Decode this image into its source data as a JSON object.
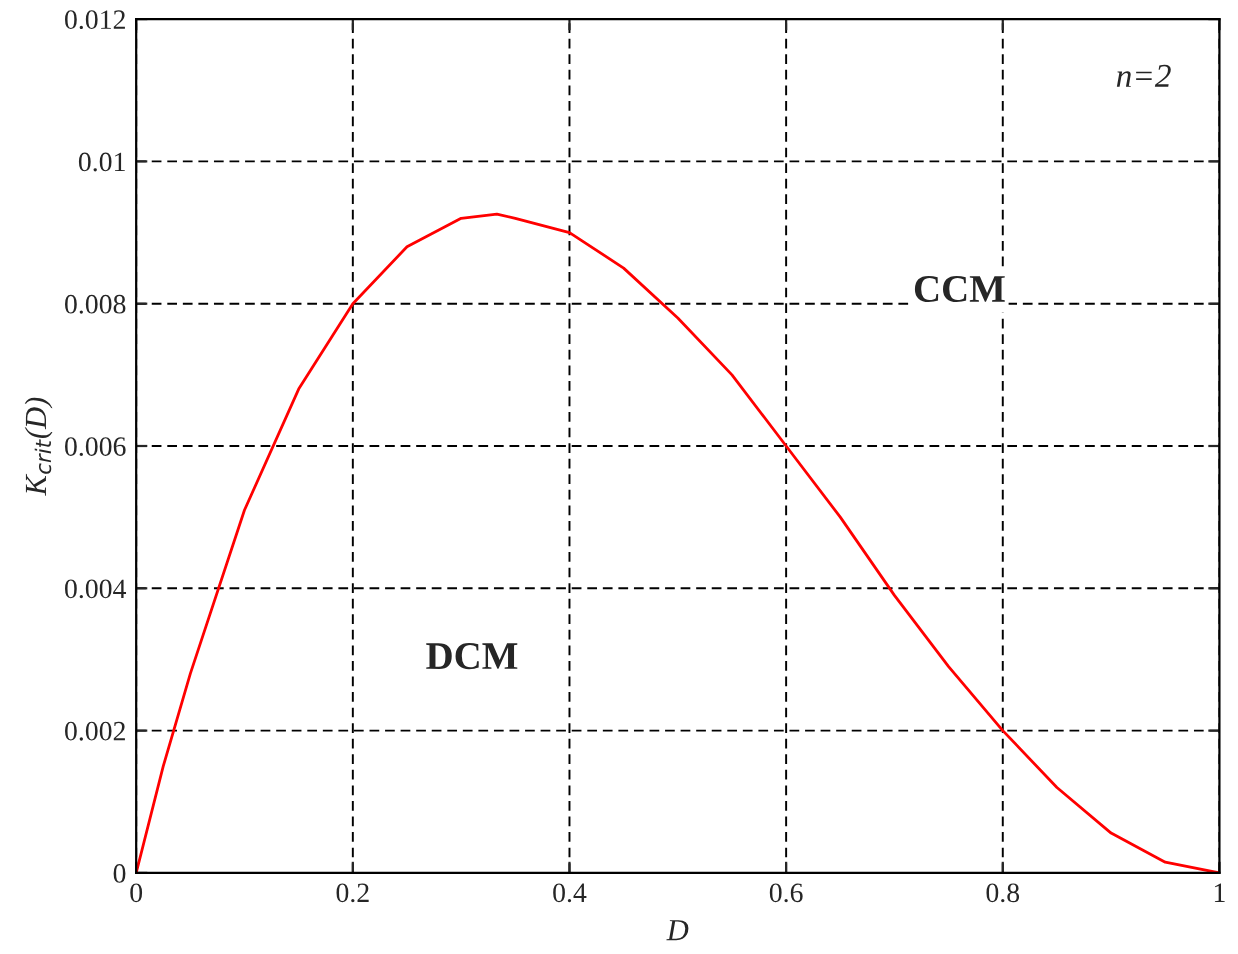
{
  "chart_data": {
    "type": "line",
    "xlabel": "D",
    "ylabel": "K$_{crit}$(D)",
    "x": [
      0,
      0.025,
      0.05,
      0.1,
      0.15,
      0.2,
      0.25,
      0.3,
      0.333,
      0.35,
      0.4,
      0.45,
      0.5,
      0.55,
      0.6,
      0.65,
      0.7,
      0.75,
      0.8,
      0.85,
      0.9,
      0.95,
      1
    ],
    "series": [
      {
        "color": "#ff0000",
        "values": [
          0,
          0.0015,
          0.0028,
          0.0051,
          0.0068,
          0.008,
          0.0088,
          0.0092,
          0.00926,
          0.0092,
          0.009,
          0.0085,
          0.0078,
          0.007,
          0.006,
          0.005,
          0.0039,
          0.0029,
          0.002,
          0.0012,
          0.00056,
          0.00015,
          0
        ]
      }
    ],
    "xlim": [
      0,
      1
    ],
    "xticks": [
      0,
      0.2,
      0.4,
      0.6,
      0.8,
      1
    ],
    "ylim": [
      0,
      0.012
    ],
    "yticks": [
      0,
      0.002,
      0.004,
      0.006,
      0.008,
      0.01,
      0.012
    ],
    "grid": true,
    "line_style": "solid",
    "annotations": [
      "n=2",
      "CCM",
      "DCM"
    ]
  }
}
